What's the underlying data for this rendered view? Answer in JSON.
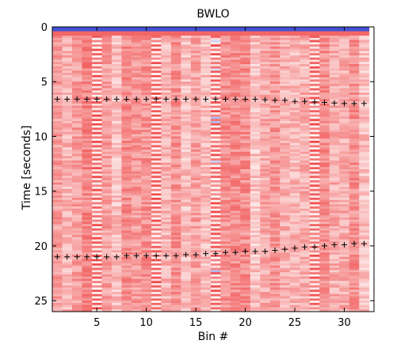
{
  "chart_data": {
    "type": "heatmap",
    "title": "BWLO",
    "xlabel": "Bin #",
    "ylabel": "Time [seconds]",
    "xlim": [
      0.5,
      33.0
    ],
    "ylim": [
      26,
      0
    ],
    "y_axis_inverted": true,
    "xticks": [
      5,
      10,
      15,
      20,
      25,
      30
    ],
    "yticks": [
      0,
      5,
      10,
      15,
      20,
      25
    ],
    "bins": 32,
    "time_rows": 130,
    "time_range": [
      0,
      26
    ],
    "colormap": "blue-white-red, mostly light red",
    "colors": {
      "low": "#2233cc",
      "mid": "#ffffff",
      "high": "#ee3333",
      "marker": "#000000"
    },
    "strong_columns": [
      5,
      11,
      17,
      27
    ],
    "series": [
      {
        "marker": "+",
        "x": [
          1,
          2,
          3,
          4,
          5,
          6,
          7,
          8,
          9,
          10,
          11,
          12,
          13,
          14,
          15,
          16,
          17,
          18,
          19,
          20,
          21,
          22,
          23,
          24,
          25,
          26,
          27,
          28,
          29,
          30,
          31,
          32
        ],
        "y": [
          6.6,
          6.6,
          6.6,
          6.6,
          6.6,
          6.6,
          6.6,
          6.6,
          6.6,
          6.6,
          6.6,
          6.6,
          6.6,
          6.6,
          6.6,
          6.6,
          6.6,
          6.6,
          6.6,
          6.6,
          6.6,
          6.65,
          6.7,
          6.7,
          6.8,
          6.8,
          6.85,
          6.9,
          6.95,
          7.0,
          7.0,
          7.0
        ]
      },
      {
        "marker": "+",
        "x": [
          1,
          2,
          3,
          4,
          5,
          6,
          7,
          8,
          9,
          10,
          11,
          12,
          13,
          14,
          15,
          16,
          17,
          18,
          19,
          20,
          21,
          22,
          23,
          24,
          25,
          26,
          27,
          28,
          29,
          30,
          31,
          32
        ],
        "y": [
          21.0,
          21.0,
          21.0,
          21.0,
          21.0,
          21.0,
          21.0,
          20.9,
          20.9,
          20.9,
          20.9,
          20.9,
          20.9,
          20.8,
          20.8,
          20.7,
          20.7,
          20.6,
          20.6,
          20.5,
          20.5,
          20.5,
          20.4,
          20.3,
          20.2,
          20.1,
          20.1,
          20.0,
          19.9,
          19.9,
          19.8,
          19.8
        ]
      }
    ]
  }
}
